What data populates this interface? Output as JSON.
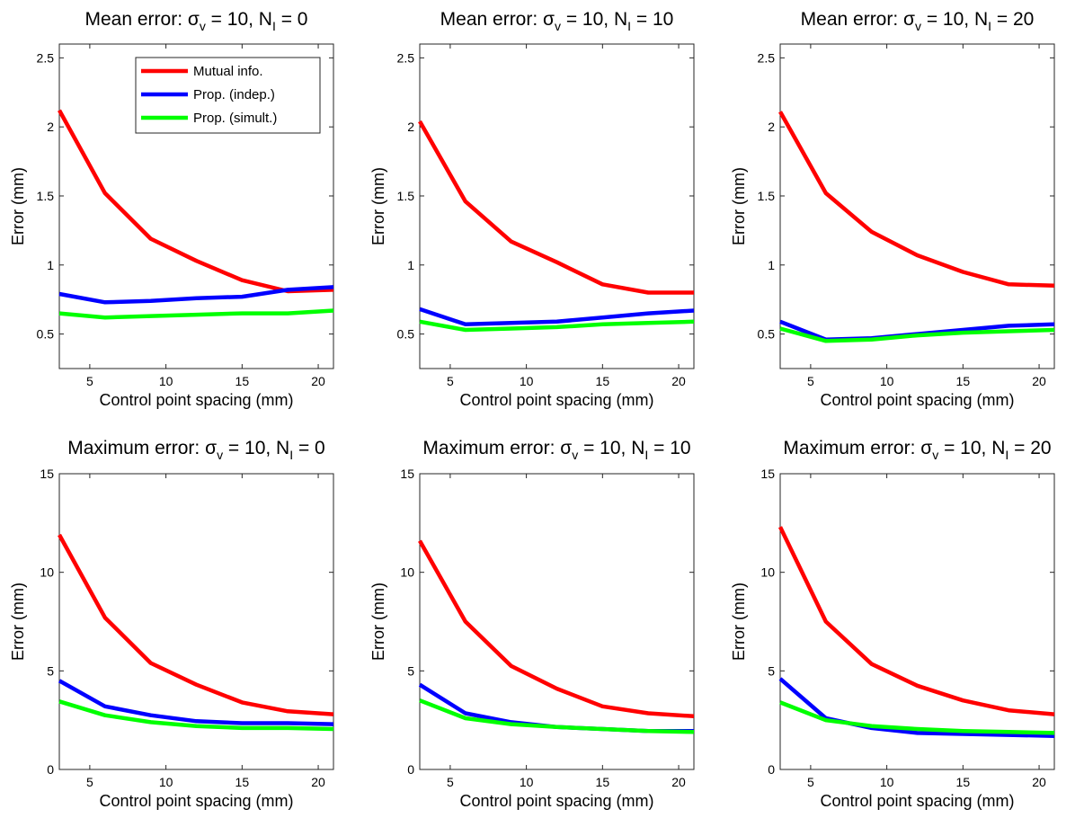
{
  "figure": {
    "legend": {
      "placement": "top-right of first panel",
      "entries": [
        "Mutual info.",
        "Prop. (indep.)",
        "Prop. (simult.)"
      ]
    },
    "colors": {
      "Mutual info.": "#ff0000",
      "Prop. (indep.)": "#0000ff",
      "Prop. (simult.)": "#00ff00"
    }
  },
  "chart_data": [
    {
      "type": "line",
      "title": {
        "prefix": "Mean error: ",
        "sigma": "σ",
        "sigma_sub": "v",
        "mid": " = 10, N",
        "n_sub": "I",
        "suffix": " = 0"
      },
      "xlabel": "Control point spacing (mm)",
      "ylabel": "Error (mm)",
      "xlim": [
        3,
        21
      ],
      "ylim": [
        0.25,
        2.6
      ],
      "xticks": [
        5,
        10,
        15,
        20
      ],
      "xtick_labels": [
        "5",
        "10",
        "15",
        "20"
      ],
      "yticks": [
        0.5,
        1,
        1.5,
        2,
        2.5
      ],
      "ytick_labels": [
        "0.5",
        "1",
        "1.5",
        "2",
        "2.5"
      ],
      "grid": false,
      "x": [
        3,
        6,
        9,
        12,
        15,
        18,
        21
      ],
      "series": [
        {
          "name": "Mutual info.",
          "values": [
            2.12,
            1.52,
            1.19,
            1.03,
            0.89,
            0.81,
            0.82
          ]
        },
        {
          "name": "Prop. (indep.)",
          "values": [
            0.79,
            0.73,
            0.74,
            0.76,
            0.77,
            0.82,
            0.84
          ]
        },
        {
          "name": "Prop. (simult.)",
          "values": [
            0.65,
            0.62,
            0.63,
            0.64,
            0.65,
            0.65,
            0.67
          ]
        }
      ]
    },
    {
      "type": "line",
      "title": {
        "prefix": "Mean error: ",
        "sigma": "σ",
        "sigma_sub": "v",
        "mid": " = 10, N",
        "n_sub": "I",
        "suffix": " = 10"
      },
      "xlabel": "Control point spacing (mm)",
      "ylabel": "Error (mm)",
      "xlim": [
        3,
        21
      ],
      "ylim": [
        0.25,
        2.6
      ],
      "xticks": [
        5,
        10,
        15,
        20
      ],
      "xtick_labels": [
        "5",
        "10",
        "15",
        "20"
      ],
      "yticks": [
        0.5,
        1,
        1.5,
        2,
        2.5
      ],
      "ytick_labels": [
        "0.5",
        "1",
        "1.5",
        "2",
        "2.5"
      ],
      "grid": false,
      "x": [
        3,
        6,
        9,
        12,
        15,
        18,
        21
      ],
      "series": [
        {
          "name": "Mutual info.",
          "values": [
            2.04,
            1.46,
            1.17,
            1.02,
            0.86,
            0.8,
            0.8
          ]
        },
        {
          "name": "Prop. (indep.)",
          "values": [
            0.68,
            0.57,
            0.58,
            0.59,
            0.62,
            0.65,
            0.67
          ]
        },
        {
          "name": "Prop. (simult.)",
          "values": [
            0.59,
            0.53,
            0.54,
            0.55,
            0.57,
            0.58,
            0.59
          ]
        }
      ]
    },
    {
      "type": "line",
      "title": {
        "prefix": "Mean error: ",
        "sigma": "σ",
        "sigma_sub": "v",
        "mid": " = 10, N",
        "n_sub": "I",
        "suffix": " = 20"
      },
      "xlabel": "Control point spacing (mm)",
      "ylabel": "Error (mm)",
      "xlim": [
        3,
        21
      ],
      "ylim": [
        0.25,
        2.6
      ],
      "xticks": [
        5,
        10,
        15,
        20
      ],
      "xtick_labels": [
        "5",
        "10",
        "15",
        "20"
      ],
      "yticks": [
        0.5,
        1,
        1.5,
        2,
        2.5
      ],
      "ytick_labels": [
        "0.5",
        "1",
        "1.5",
        "2",
        "2.5"
      ],
      "grid": false,
      "x": [
        3,
        6,
        9,
        12,
        15,
        18,
        21
      ],
      "series": [
        {
          "name": "Mutual info.",
          "values": [
            2.11,
            1.52,
            1.24,
            1.07,
            0.95,
            0.86,
            0.85
          ]
        },
        {
          "name": "Prop. (indep.)",
          "values": [
            0.59,
            0.46,
            0.47,
            0.5,
            0.53,
            0.56,
            0.57
          ]
        },
        {
          "name": "Prop. (simult.)",
          "values": [
            0.54,
            0.45,
            0.46,
            0.49,
            0.51,
            0.52,
            0.53
          ]
        }
      ]
    },
    {
      "type": "line",
      "title": {
        "prefix": "Maximum error: ",
        "sigma": "σ",
        "sigma_sub": "v",
        "mid": " = 10, N",
        "n_sub": "I",
        "suffix": " = 0"
      },
      "xlabel": "Control point spacing (mm)",
      "ylabel": "Error (mm)",
      "xlim": [
        3,
        21
      ],
      "ylim": [
        0,
        15
      ],
      "xticks": [
        5,
        10,
        15,
        20
      ],
      "xtick_labels": [
        "5",
        "10",
        "15",
        "20"
      ],
      "yticks": [
        0,
        5,
        10,
        15
      ],
      "ytick_labels": [
        "0",
        "5",
        "10",
        "15"
      ],
      "grid": false,
      "x": [
        3,
        6,
        9,
        12,
        15,
        18,
        21
      ],
      "series": [
        {
          "name": "Mutual info.",
          "values": [
            11.9,
            7.7,
            5.4,
            4.3,
            3.4,
            2.95,
            2.8
          ]
        },
        {
          "name": "Prop. (indep.)",
          "values": [
            4.5,
            3.2,
            2.75,
            2.45,
            2.35,
            2.35,
            2.3
          ]
        },
        {
          "name": "Prop. (simult.)",
          "values": [
            3.45,
            2.75,
            2.4,
            2.2,
            2.1,
            2.1,
            2.05
          ]
        }
      ]
    },
    {
      "type": "line",
      "title": {
        "prefix": "Maximum error: ",
        "sigma": "σ",
        "sigma_sub": "v",
        "mid": " = 10, N",
        "n_sub": "I",
        "suffix": " = 10"
      },
      "xlabel": "Control point spacing (mm)",
      "ylabel": "Error (mm)",
      "xlim": [
        3,
        21
      ],
      "ylim": [
        0,
        15
      ],
      "xticks": [
        5,
        10,
        15,
        20
      ],
      "xtick_labels": [
        "5",
        "10",
        "15",
        "20"
      ],
      "yticks": [
        0,
        5,
        10,
        15
      ],
      "ytick_labels": [
        "0",
        "5",
        "10",
        "15"
      ],
      "grid": false,
      "x": [
        3,
        6,
        9,
        12,
        15,
        18,
        21
      ],
      "series": [
        {
          "name": "Mutual info.",
          "values": [
            11.6,
            7.5,
            5.25,
            4.1,
            3.2,
            2.85,
            2.7
          ]
        },
        {
          "name": "Prop. (indep.)",
          "values": [
            4.3,
            2.85,
            2.4,
            2.15,
            2.05,
            1.95,
            1.95
          ]
        },
        {
          "name": "Prop. (simult.)",
          "values": [
            3.5,
            2.6,
            2.3,
            2.15,
            2.05,
            1.95,
            1.9
          ]
        }
      ]
    },
    {
      "type": "line",
      "title": {
        "prefix": "Maximum error: ",
        "sigma": "σ",
        "sigma_sub": "v",
        "mid": " = 10, N",
        "n_sub": "I",
        "suffix": " = 20"
      },
      "xlabel": "Control point spacing (mm)",
      "ylabel": "Error (mm)",
      "xlim": [
        3,
        21
      ],
      "ylim": [
        0,
        15
      ],
      "xticks": [
        5,
        10,
        15,
        20
      ],
      "xtick_labels": [
        "5",
        "10",
        "15",
        "20"
      ],
      "yticks": [
        0,
        5,
        10,
        15
      ],
      "ytick_labels": [
        "0",
        "5",
        "10",
        "15"
      ],
      "grid": false,
      "x": [
        3,
        6,
        9,
        12,
        15,
        18,
        21
      ],
      "series": [
        {
          "name": "Mutual info.",
          "values": [
            12.3,
            7.5,
            5.35,
            4.25,
            3.5,
            3.0,
            2.8
          ]
        },
        {
          "name": "Prop. (indep.)",
          "values": [
            4.6,
            2.6,
            2.1,
            1.85,
            1.8,
            1.75,
            1.7
          ]
        },
        {
          "name": "Prop. (simult.)",
          "values": [
            3.4,
            2.5,
            2.2,
            2.05,
            1.95,
            1.9,
            1.85
          ]
        }
      ]
    }
  ]
}
